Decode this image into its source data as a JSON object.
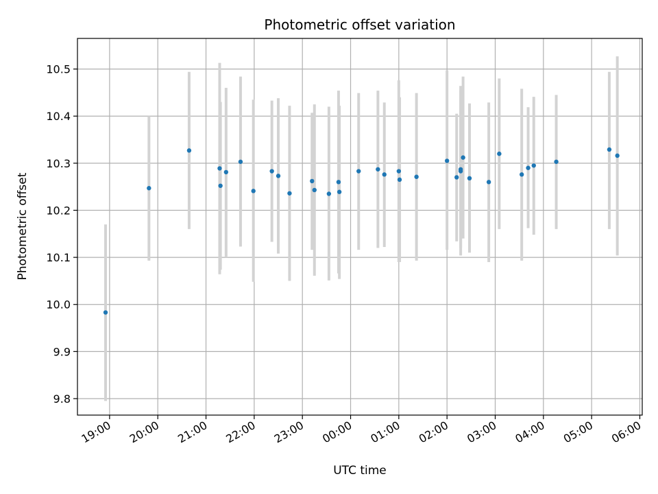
{
  "chart_data": {
    "type": "scatter",
    "title": "Photometric offset variation",
    "xlabel": "UTC time",
    "ylabel": "Photometric offset",
    "x_unit": "UTC time",
    "x_ticks": [
      "19:00",
      "20:00",
      "21:00",
      "22:00",
      "23:00",
      "00:00",
      "01:00",
      "02:00",
      "03:00",
      "04:00",
      "05:00",
      "06:00"
    ],
    "xlim": [
      "18:20",
      "06:03"
    ],
    "yticks": [
      9.8,
      9.9,
      10.0,
      10.1,
      10.2,
      10.3,
      10.4,
      10.5
    ],
    "ylim": [
      9.765,
      10.565
    ],
    "grid": true,
    "marker_color": "#1f77b4",
    "errorbar_color": "#d3d3d3",
    "points": [
      {
        "x": "18:55",
        "y": 9.983,
        "low": 9.795,
        "high": 10.17
      },
      {
        "x": "19:49",
        "y": 10.247,
        "low": 10.093,
        "high": 10.4
      },
      {
        "x": "20:39",
        "y": 10.327,
        "low": 10.16,
        "high": 10.494
      },
      {
        "x": "21:17",
        "y": 10.289,
        "low": 10.064,
        "high": 10.513
      },
      {
        "x": "21:18",
        "y": 10.252,
        "low": 10.074,
        "high": 10.43
      },
      {
        "x": "21:25",
        "y": 10.281,
        "low": 10.1,
        "high": 10.46
      },
      {
        "x": "21:43",
        "y": 10.303,
        "low": 10.123,
        "high": 10.484
      },
      {
        "x": "21:59",
        "y": 10.241,
        "low": 10.048,
        "high": 10.435
      },
      {
        "x": "22:22",
        "y": 10.283,
        "low": 10.133,
        "high": 10.433
      },
      {
        "x": "22:30",
        "y": 10.273,
        "low": 10.108,
        "high": 10.438
      },
      {
        "x": "22:44",
        "y": 10.236,
        "low": 10.05,
        "high": 10.422
      },
      {
        "x": "23:12",
        "y": 10.262,
        "low": 10.116,
        "high": 10.407
      },
      {
        "x": "23:15",
        "y": 10.243,
        "low": 10.061,
        "high": 10.425
      },
      {
        "x": "23:33",
        "y": 10.235,
        "low": 10.051,
        "high": 10.42
      },
      {
        "x": "23:45",
        "y": 10.26,
        "low": 10.066,
        "high": 10.454
      },
      {
        "x": "23:46",
        "y": 10.239,
        "low": 10.054,
        "high": 10.422
      },
      {
        "x": "00:10",
        "y": 10.283,
        "low": 10.116,
        "high": 10.449
      },
      {
        "x": "00:34",
        "y": 10.287,
        "low": 10.12,
        "high": 10.454
      },
      {
        "x": "00:42",
        "y": 10.276,
        "low": 10.122,
        "high": 10.429
      },
      {
        "x": "01:00",
        "y": 10.283,
        "low": 10.09,
        "high": 10.476
      },
      {
        "x": "01:01",
        "y": 10.265,
        "low": 10.09,
        "high": 10.44
      },
      {
        "x": "01:22",
        "y": 10.271,
        "low": 10.093,
        "high": 10.449
      },
      {
        "x": "02:00",
        "y": 10.305,
        "low": 10.116,
        "high": 10.497
      },
      {
        "x": "02:12",
        "y": 10.27,
        "low": 10.134,
        "high": 10.405
      },
      {
        "x": "02:17",
        "y": 10.287,
        "low": 10.12,
        "high": 10.454
      },
      {
        "x": "02:17",
        "y": 10.283,
        "low": 10.104,
        "high": 10.464
      },
      {
        "x": "02:20",
        "y": 10.312,
        "low": 10.14,
        "high": 10.484
      },
      {
        "x": "02:28",
        "y": 10.268,
        "low": 10.11,
        "high": 10.427
      },
      {
        "x": "02:52",
        "y": 10.26,
        "low": 10.09,
        "high": 10.429
      },
      {
        "x": "03:05",
        "y": 10.32,
        "low": 10.16,
        "high": 10.48
      },
      {
        "x": "03:33",
        "y": 10.276,
        "low": 10.093,
        "high": 10.458
      },
      {
        "x": "03:41",
        "y": 10.29,
        "low": 10.162,
        "high": 10.419
      },
      {
        "x": "03:48",
        "y": 10.295,
        "low": 10.148,
        "high": 10.441
      },
      {
        "x": "04:16",
        "y": 10.303,
        "low": 10.16,
        "high": 10.445
      },
      {
        "x": "05:22",
        "y": 10.329,
        "low": 10.16,
        "high": 10.494
      },
      {
        "x": "05:32",
        "y": 10.316,
        "low": 10.104,
        "high": 10.527
      }
    ]
  }
}
